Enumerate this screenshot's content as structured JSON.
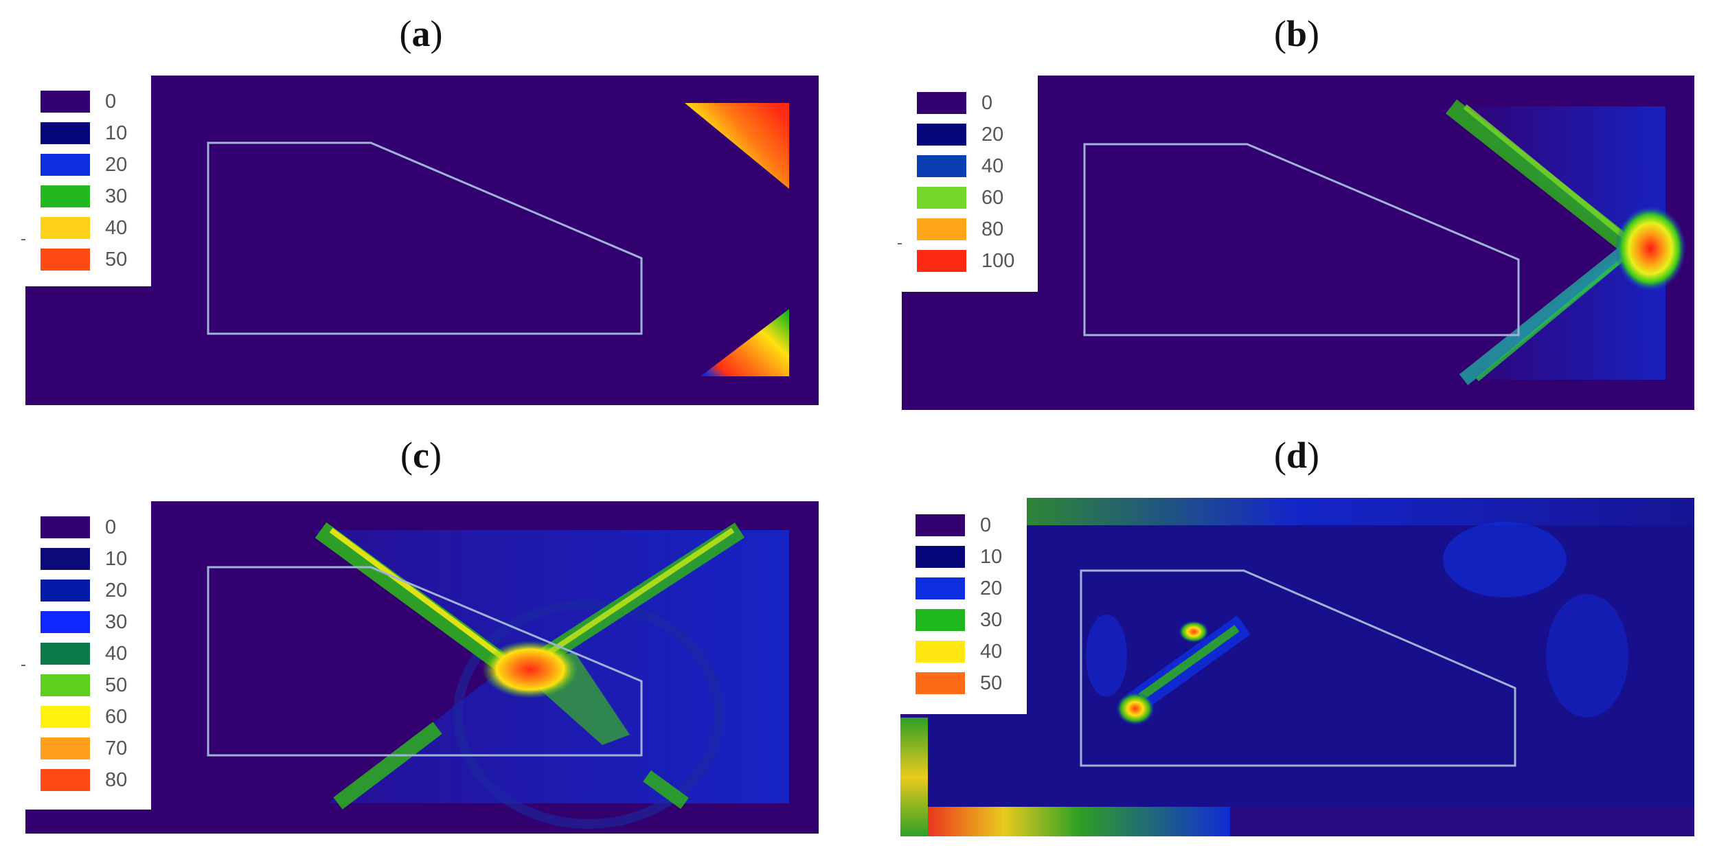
{
  "panels": [
    {
      "label": "a",
      "legend": [
        {
          "value": "0",
          "color": "#33006f"
        },
        {
          "value": "10",
          "color": "#06067a"
        },
        {
          "value": "20",
          "color": "#0d2fe0"
        },
        {
          "value": "30",
          "color": "#22b81e"
        },
        {
          "value": "40",
          "color": "#ffd21a"
        },
        {
          "value": "50",
          "color": "#ff4a14"
        }
      ]
    },
    {
      "label": "b",
      "legend": [
        {
          "value": "0",
          "color": "#33006f"
        },
        {
          "value": "20",
          "color": "#06067a"
        },
        {
          "value": "40",
          "color": "#0a3fb4"
        },
        {
          "value": "60",
          "color": "#76d72a"
        },
        {
          "value": "80",
          "color": "#ffa51a"
        },
        {
          "value": "100",
          "color": "#ff2a14"
        }
      ]
    },
    {
      "label": "c",
      "legend": [
        {
          "value": "0",
          "color": "#33006f"
        },
        {
          "value": "10",
          "color": "#0c0a78"
        },
        {
          "value": "20",
          "color": "#061aa8"
        },
        {
          "value": "30",
          "color": "#0f26ff"
        },
        {
          "value": "40",
          "color": "#0a7a4a"
        },
        {
          "value": "50",
          "color": "#5ecf1e"
        },
        {
          "value": "60",
          "color": "#fff20c"
        },
        {
          "value": "70",
          "color": "#ff9f1a"
        },
        {
          "value": "80",
          "color": "#ff4a14"
        }
      ]
    },
    {
      "label": "d",
      "legend": [
        {
          "value": "0",
          "color": "#33006f"
        },
        {
          "value": "10",
          "color": "#06067a"
        },
        {
          "value": "20",
          "color": "#0d2fe0"
        },
        {
          "value": "30",
          "color": "#1fb81c"
        },
        {
          "value": "40",
          "color": "#ffe812"
        },
        {
          "value": "50",
          "color": "#ff6a14"
        }
      ]
    }
  ]
}
